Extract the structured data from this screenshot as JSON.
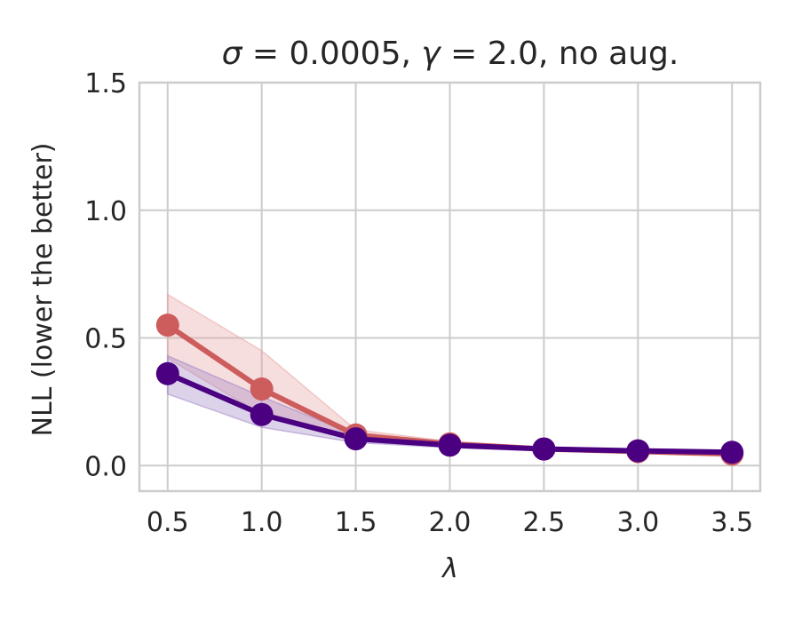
{
  "chart_data": {
    "type": "line",
    "title_parts": {
      "sigma_sym": "σ",
      "sigma_rest": " = 0.0005, ",
      "gamma_sym": "γ",
      "gamma_rest": " = 2.0, no aug."
    },
    "xlabel": "λ",
    "ylabel": "NLL (lower the better)",
    "x": [
      0.5,
      1.0,
      1.5,
      2.0,
      2.5,
      3.0,
      3.5
    ],
    "x_tick_labels": [
      "0.5",
      "1.0",
      "1.5",
      "2.0",
      "2.5",
      "3.0",
      "3.5"
    ],
    "y_ticks": [
      0.0,
      0.5,
      1.0,
      1.5
    ],
    "y_tick_labels": [
      "0.0",
      "0.5",
      "1.0",
      "1.5"
    ],
    "xlim": [
      0.35,
      3.65
    ],
    "ylim": [
      -0.1,
      1.5
    ],
    "grid": true,
    "series": [
      {
        "color": "#cd5c5c",
        "band_color": "#e8a0a0",
        "values": [
          0.55,
          0.3,
          0.12,
          0.085,
          0.065,
          0.055,
          0.045
        ],
        "lower": [
          0.42,
          0.2,
          0.1,
          0.075,
          0.058,
          0.048,
          0.038
        ],
        "upper": [
          0.67,
          0.45,
          0.14,
          0.095,
          0.072,
          0.062,
          0.052
        ]
      },
      {
        "color": "#4b0082",
        "band_color": "#9b7fc4",
        "values": [
          0.36,
          0.2,
          0.105,
          0.08,
          0.065,
          0.058,
          0.052
        ],
        "lower": [
          0.28,
          0.15,
          0.09,
          0.07,
          0.058,
          0.052,
          0.046
        ],
        "upper": [
          0.43,
          0.27,
          0.12,
          0.09,
          0.072,
          0.064,
          0.058
        ]
      }
    ]
  }
}
